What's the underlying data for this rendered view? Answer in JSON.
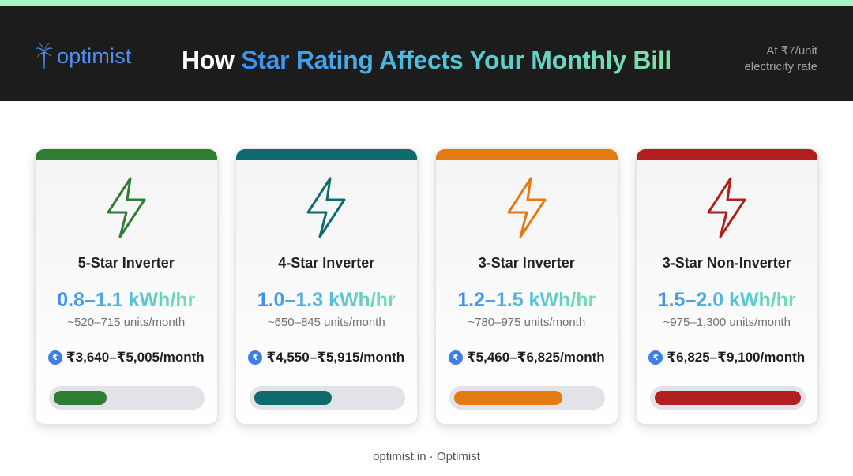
{
  "brand": {
    "name": "optimist",
    "icon": "palm-tree-icon",
    "color": "#4f8ef0"
  },
  "headline": {
    "prefix": "How ",
    "highlight": "Star Rating Affects Your Monthly Bill"
  },
  "rate_note": {
    "line1": "At ₹7/unit",
    "line2": "electricity rate"
  },
  "cards": [
    {
      "title": "5-Star Inverter",
      "kwh": "0.8–1.1 kWh/hr",
      "units": "~520–715 units/month",
      "cost": "₹3,640–₹5,005/month",
      "color": "#2e7d32",
      "level_fraction": 0.36,
      "icon": "lightning-bolt-icon"
    },
    {
      "title": "4-Star Inverter",
      "kwh": "1.0–1.3 kWh/hr",
      "units": "~650–845 units/month",
      "cost": "₹4,550–₹5,915/month",
      "color": "#0f6b6b",
      "level_fraction": 0.53,
      "icon": "lightning-bolt-icon"
    },
    {
      "title": "3-Star Inverter",
      "kwh": "1.2–1.5 kWh/hr",
      "units": "~780–975 units/month",
      "cost": "₹5,460–₹6,825/month",
      "color": "#e47a12",
      "level_fraction": 0.74,
      "icon": "lightning-bolt-icon"
    },
    {
      "title": "3-Star Non-Inverter",
      "kwh": "1.5–2.0 kWh/hr",
      "units": "~975–1,300 units/month",
      "cost": "₹6,825–₹9,100/month",
      "color": "#b01e1e",
      "level_fraction": 1.0,
      "icon": "lightning-bolt-icon"
    }
  ],
  "currency_symbol": "₹",
  "footer": "optimist.in · Optimist"
}
